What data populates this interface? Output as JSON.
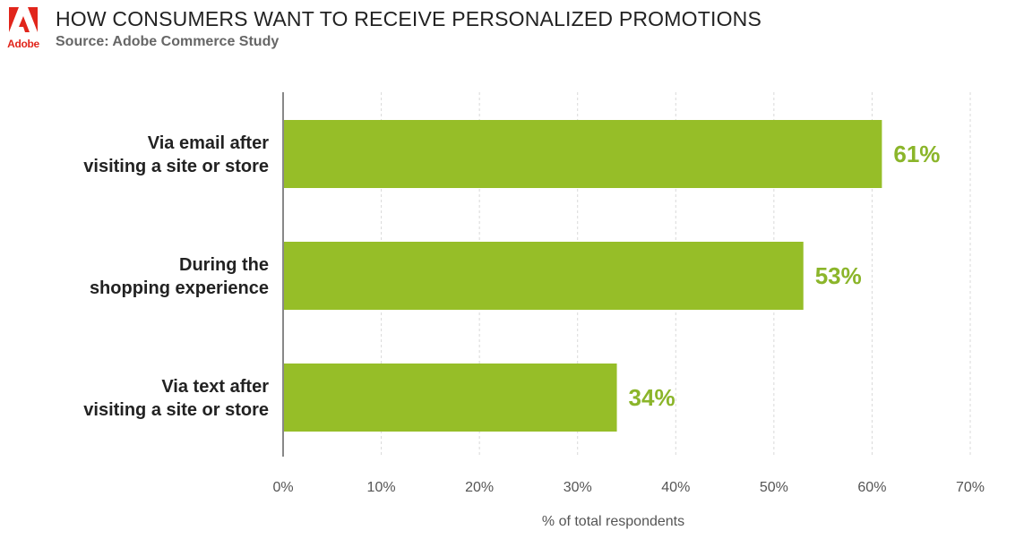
{
  "header": {
    "logo_text": "Adobe",
    "title": "HOW CONSUMERS WANT TO RECEIVE PERSONALIZED PROMOTIONS",
    "subtitle": "Source: Adobe Commerce Study"
  },
  "colors": {
    "bar": "#96be28",
    "value_label": "#8bb52a",
    "logo": "#e1251b",
    "grid": "#d9d9d9",
    "axis": "#888888"
  },
  "chart_data": {
    "type": "bar",
    "orientation": "horizontal",
    "title": "HOW CONSUMERS WANT TO RECEIVE PERSONALIZED PROMOTIONS",
    "subtitle": "Source: Adobe Commerce Study",
    "categories": [
      [
        "Via email after",
        "visiting a site or store"
      ],
      [
        "During the",
        "shopping experience"
      ],
      [
        "Via text after",
        "visiting a site or store"
      ]
    ],
    "values": [
      61,
      53,
      34
    ],
    "data_labels": [
      "61%",
      "53%",
      "34%"
    ],
    "xlabel": "% of total respondents",
    "ylabel": "",
    "xlim": [
      0,
      70
    ],
    "x_ticks": [
      0,
      10,
      20,
      30,
      40,
      50,
      60,
      70
    ],
    "x_tick_labels": [
      "0%",
      "10%",
      "20%",
      "30%",
      "40%",
      "50%",
      "60%",
      "70%"
    ],
    "grid": "vertical-dashed",
    "legend": "none"
  }
}
